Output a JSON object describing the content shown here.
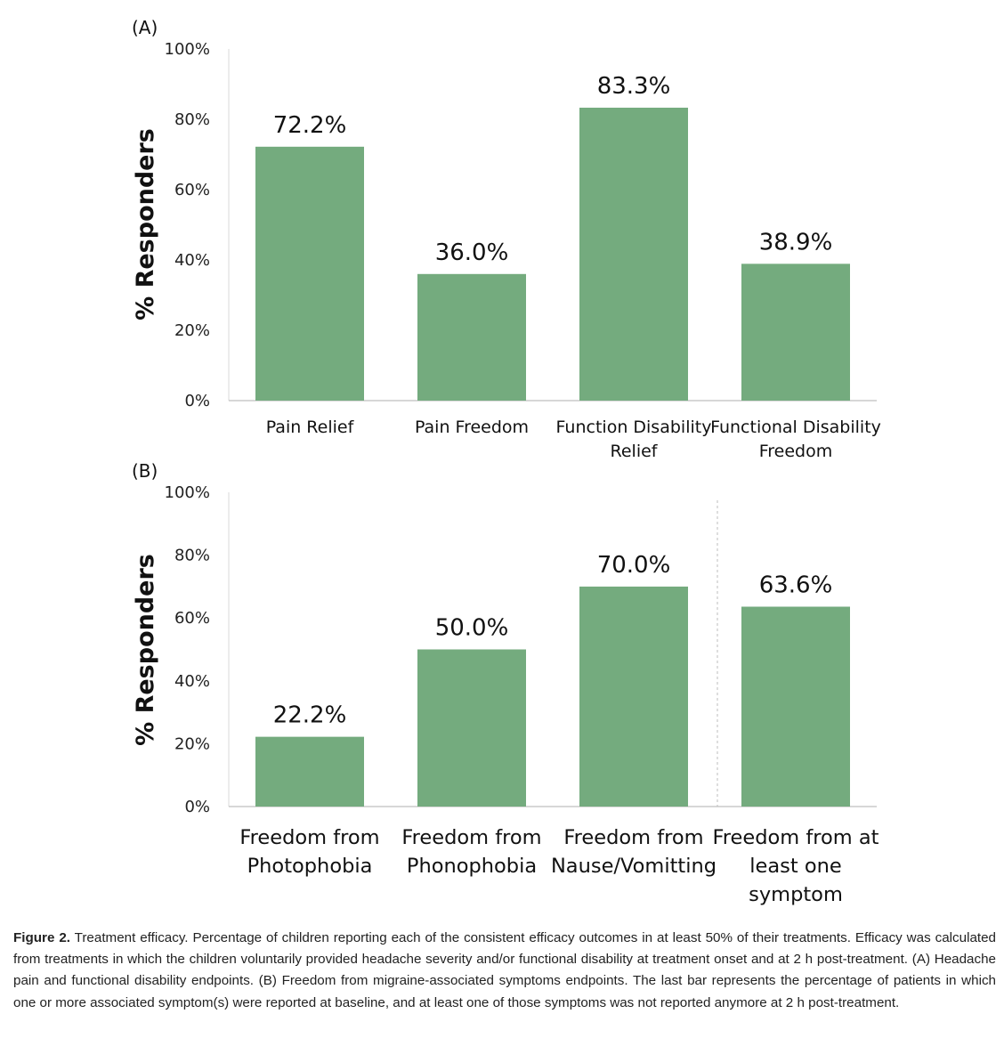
{
  "chart_data": [
    {
      "panel": "(A)",
      "type": "bar",
      "ylabel": "% Responders",
      "xlabel": "",
      "ylim": [
        0,
        100
      ],
      "yticks": [
        "0%",
        "20%",
        "40%",
        "60%",
        "80%",
        "100%"
      ],
      "categories": [
        [
          "Pain Relief"
        ],
        [
          "Pain Freedom"
        ],
        [
          "Function Disability",
          "Relief"
        ],
        [
          "Functional Disability",
          "Freedom"
        ]
      ],
      "values": [
        72.2,
        36.0,
        83.3,
        38.9
      ],
      "data_labels": [
        "72.2%",
        "36.0%",
        "83.3%",
        "38.9%"
      ],
      "bar_color": "#74ab7e",
      "grid": false,
      "legend": "none"
    },
    {
      "panel": "(B)",
      "type": "bar",
      "ylabel": "% Responders",
      "xlabel": "",
      "ylim": [
        0,
        100
      ],
      "yticks": [
        "0%",
        "20%",
        "40%",
        "60%",
        "80%",
        "100%"
      ],
      "categories": [
        [
          "Freedom from",
          "Photophobia"
        ],
        [
          "Freedom from",
          "Phonophobia"
        ],
        [
          "Freedom from",
          "Nause/Vomitting"
        ],
        [
          "Freedom from at",
          "least one",
          "symptom"
        ]
      ],
      "values": [
        22.2,
        50.0,
        70.0,
        63.6
      ],
      "data_labels": [
        "22.2%",
        "50.0%",
        "70.0%",
        "63.6%"
      ],
      "bar_color": "#74ab7e",
      "grid": false,
      "legend": "none",
      "separator_before_last_bar": true
    }
  ],
  "caption": {
    "label": "Figure 2.",
    "text": "Treatment efficacy. Percentage of children reporting each of the consistent efficacy outcomes in at least 50% of their treatments. Efficacy was calculated from treatments in which the children voluntarily provided headache severity and/or functional disability at treatment onset and at 2 h post-treatment. (A) Headache pain and functional disability endpoints. (B) Freedom from migraine-associated symptoms endpoints. The last bar represents the percentage of patients in which one or more associated symptom(s) were reported at baseline, and at least one of those symptoms was not reported anymore at 2 h post-treatment."
  }
}
